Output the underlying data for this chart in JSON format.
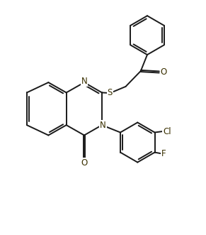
{
  "bg_color": "#ffffff",
  "line_color": "#1a1a1a",
  "atom_color": "#3a3000",
  "line_width": 1.4,
  "figsize": [
    2.91,
    3.31
  ],
  "dpi": 100,
  "xlim": [
    0,
    9.5
  ],
  "ylim": [
    0,
    10.8
  ]
}
